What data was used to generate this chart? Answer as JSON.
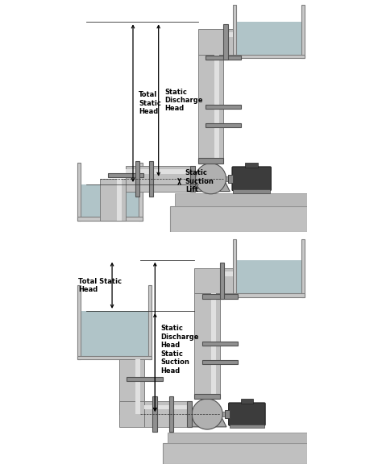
{
  "bg_color": "#ffffff",
  "pipe_c": "#c0c0c0",
  "pipe_hi": "#e0e0e0",
  "pipe_dk": "#707070",
  "flange_c": "#909090",
  "flange_dk": "#505050",
  "water_c": "#b0c4c8",
  "wall_c": "#c8c8c8",
  "wall_dk": "#808080",
  "pump_c": "#b0b0b0",
  "pump_dk": "#505050",
  "pump_diff": "#a0a0a0",
  "base_c": "#c0c0c0",
  "base_dk": "#909090",
  "motor_c": "#3c3c3c",
  "motor_dk": "#202020",
  "line_c": "#303030",
  "text_c": "#000000",
  "diagram1": {
    "static_discharge_head": "Static\nDischarge\nHead",
    "total_static_head": "Total\nStatic\nHead",
    "static_suction_lift": "Static\nSuction\nLift"
  },
  "diagram2": {
    "total_static_head": "Total Static\nHead",
    "static_discharge_head": "Static\nDischarge\nHead",
    "static_suction_head": "Static\nSuction\nHead"
  }
}
